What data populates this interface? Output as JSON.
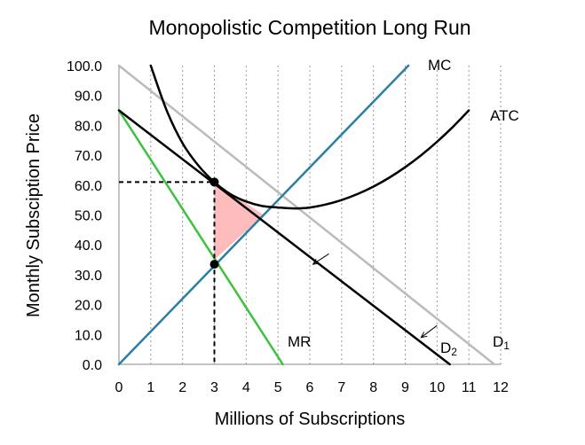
{
  "chart_data": {
    "type": "line",
    "title": "Monopolistic Competition Long Run",
    "xlabel": "Millions of Subscriptions",
    "ylabel": "Monthly Subsciption Price",
    "xlim": [
      0,
      12
    ],
    "ylim": [
      0,
      100
    ],
    "grid": true,
    "x_ticks": [
      "0",
      "1",
      "2",
      "3",
      "4",
      "5",
      "6",
      "7",
      "8",
      "9",
      "10",
      "11",
      "12"
    ],
    "y_ticks": [
      "0.0",
      "10.0",
      "20.0",
      "30.0",
      "40.0",
      "50.0",
      "60.0",
      "70.0",
      "80.0",
      "90.0",
      "100.0"
    ],
    "series": [
      {
        "name": "MC",
        "color": "#2a7fa6",
        "points": [
          [
            0,
            0
          ],
          [
            9.1,
            100
          ]
        ]
      },
      {
        "name": "ATC",
        "color": "#000000",
        "points": [
          [
            1,
            100
          ],
          [
            1.5,
            85
          ],
          [
            2,
            74
          ],
          [
            2.5,
            66.5
          ],
          [
            3,
            61
          ],
          [
            3.5,
            57
          ],
          [
            4,
            54.5
          ],
          [
            4.5,
            53
          ],
          [
            5,
            52.5
          ],
          [
            5.5,
            52.2
          ],
          [
            6,
            52.5
          ],
          [
            6.5,
            53.5
          ],
          [
            7,
            55
          ],
          [
            7.5,
            57
          ],
          [
            8,
            59.5
          ],
          [
            8.5,
            62.5
          ],
          [
            9,
            66
          ],
          [
            9.5,
            70
          ],
          [
            10,
            74.5
          ],
          [
            10.5,
            79.5
          ],
          [
            11,
            85
          ]
        ]
      },
      {
        "name": "D1",
        "color": "#bbbbbb",
        "points": [
          [
            0,
            100
          ],
          [
            11.8,
            0
          ]
        ]
      },
      {
        "name": "D2",
        "color": "#000000",
        "points": [
          [
            0,
            85
          ],
          [
            10.4,
            0
          ]
        ]
      },
      {
        "name": "MR",
        "color": "#3cc23c",
        "points": [
          [
            0,
            85
          ],
          [
            5.15,
            0
          ]
        ]
      }
    ],
    "labels": {
      "mc": "MC",
      "atc": "ATC",
      "mr": "MR",
      "d2_letter": "D",
      "d2_sub": "2",
      "d1_letter": "D",
      "d1_sub": "1"
    },
    "equilibrium": {
      "quantity": 3,
      "price": 61,
      "mc_at_quantity": 33.5
    },
    "shaded_region": {
      "color": "#ffbcbc",
      "points": [
        [
          3,
          61
        ],
        [
          3,
          35
        ],
        [
          4.55,
          50
        ]
      ]
    },
    "shift_arrows": [
      {
        "from": [
          6.6,
          37
        ],
        "to": [
          6.1,
          33.5
        ]
      },
      {
        "from": [
          10,
          13
        ],
        "to": [
          9.5,
          9
        ]
      }
    ]
  }
}
